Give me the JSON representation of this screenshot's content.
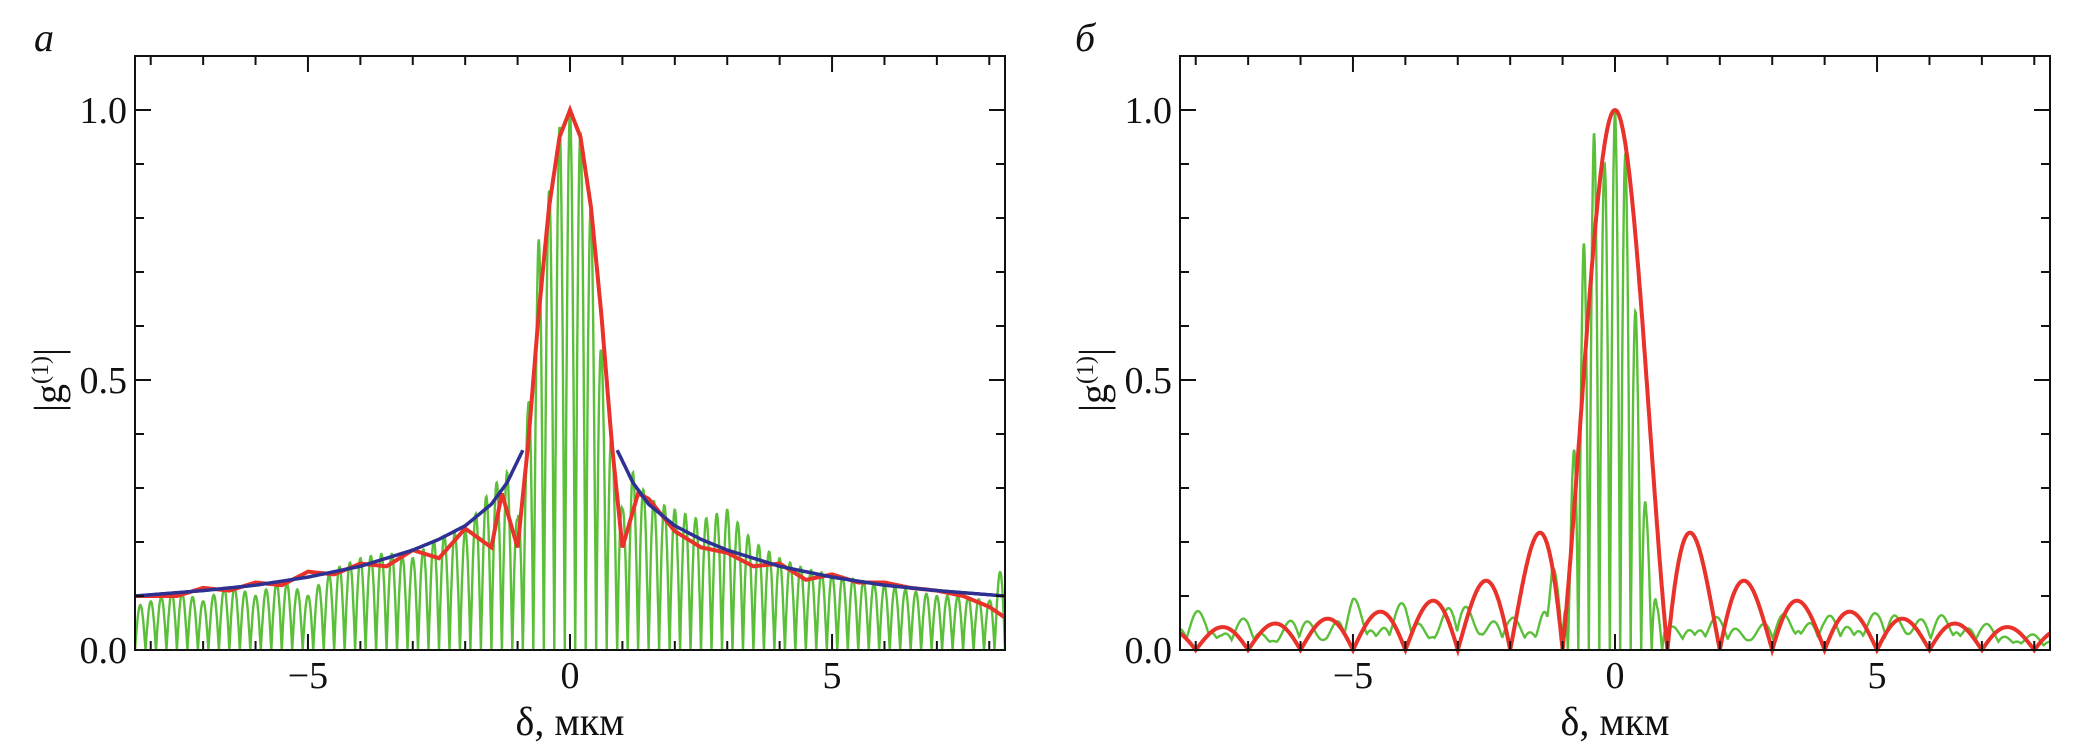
{
  "figure": {
    "panels": [
      {
        "letter": "а"
      },
      {
        "letter": "б"
      }
    ]
  },
  "colors": {
    "frame": "#111111",
    "green": "#5bbf3a",
    "red": "#e8322a",
    "blue": "#2e3192"
  },
  "chart_data": [
    {
      "type": "line",
      "panel": "а",
      "xlabel": "δ, мкм",
      "ylabel_base": "|g",
      "ylabel_sup": "(1)",
      "ylabel_end": "|",
      "xlim": [
        -8.3,
        8.3
      ],
      "ylim": [
        0,
        1.1
      ],
      "xticks": [
        {
          "value": -5,
          "label": "−5"
        },
        {
          "value": 0,
          "label": "0"
        },
        {
          "value": 5,
          "label": "5"
        }
      ],
      "yticks": [
        {
          "value": 0,
          "label": "0.0"
        },
        {
          "value": 0.5,
          "label": "0.5"
        },
        {
          "value": 1,
          "label": "1.0"
        }
      ],
      "minor_xtick_step": 1,
      "minor_ytick_step": 0.1,
      "series": [
        {
          "color_key": "green",
          "kind": "fringes",
          "x": [
            -8.3,
            -8.0,
            -7.5,
            -7.0,
            -6.5,
            -6.0,
            -5.5,
            -5.0,
            -4.5,
            -4.0,
            -3.5,
            -3.0,
            -2.5,
            -2.0,
            -1.5,
            -1.2,
            -1.0,
            -0.8,
            -0.6,
            -0.4,
            -0.2,
            0.0,
            0.2,
            0.4,
            0.6,
            0.8,
            1.0,
            1.2,
            1.5,
            2.0,
            2.5,
            3.0,
            3.5,
            4.0,
            4.5,
            5.0,
            5.5,
            6.0,
            6.5,
            7.0,
            7.5,
            8.0,
            8.3
          ],
          "y": [
            0.08,
            0.09,
            0.11,
            0.09,
            0.12,
            0.1,
            0.13,
            0.1,
            0.15,
            0.17,
            0.18,
            0.17,
            0.21,
            0.22,
            0.3,
            0.33,
            0.24,
            0.45,
            0.76,
            0.85,
            0.97,
            1.0,
            0.96,
            0.82,
            0.55,
            0.4,
            0.26,
            0.33,
            0.28,
            0.26,
            0.24,
            0.26,
            0.2,
            0.17,
            0.15,
            0.14,
            0.13,
            0.12,
            0.11,
            0.1,
            0.1,
            0.09,
            0.17
          ],
          "period": 0.2
        },
        {
          "color_key": "red",
          "kind": "smooth",
          "x": [
            -8.3,
            -7.5,
            -7.0,
            -6.5,
            -6.0,
            -5.5,
            -5.0,
            -4.5,
            -4.0,
            -3.5,
            -3.0,
            -2.5,
            -2.0,
            -1.5,
            -1.3,
            -1.0,
            -0.8,
            -0.6,
            -0.4,
            -0.2,
            0.0,
            0.2,
            0.4,
            0.6,
            0.8,
            1.0,
            1.3,
            1.5,
            2.0,
            2.5,
            3.0,
            3.5,
            4.0,
            4.5,
            5.0,
            5.5,
            6.0,
            6.5,
            7.0,
            7.5,
            8.0,
            8.3
          ],
          "y": [
            0.1,
            0.1,
            0.115,
            0.11,
            0.125,
            0.12,
            0.145,
            0.14,
            0.16,
            0.155,
            0.185,
            0.17,
            0.225,
            0.19,
            0.29,
            0.19,
            0.38,
            0.62,
            0.82,
            0.95,
            1.0,
            0.95,
            0.82,
            0.62,
            0.38,
            0.19,
            0.29,
            0.28,
            0.22,
            0.19,
            0.18,
            0.155,
            0.16,
            0.13,
            0.14,
            0.125,
            0.125,
            0.115,
            0.11,
            0.1,
            0.08,
            0.06
          ]
        },
        {
          "color_key": "blue",
          "kind": "smooth",
          "segments": [
            {
              "x": [
                -8.3,
                -7.0,
                -6.0,
                -5.0,
                -4.0,
                -3.0,
                -2.5,
                -2.0,
                -1.5,
                -1.2,
                -0.9
              ],
              "y": [
                0.1,
                0.11,
                0.12,
                0.135,
                0.155,
                0.185,
                0.205,
                0.23,
                0.27,
                0.31,
                0.37
              ]
            },
            {
              "x": [
                0.9,
                1.2,
                1.5,
                2.0,
                2.5,
                3.0,
                4.0,
                5.0,
                6.0,
                7.0,
                8.3
              ],
              "y": [
                0.37,
                0.31,
                0.27,
                0.23,
                0.205,
                0.185,
                0.155,
                0.135,
                0.12,
                0.11,
                0.1
              ]
            }
          ]
        }
      ]
    },
    {
      "type": "line",
      "panel": "б",
      "xlabel": "δ, мкм",
      "ylabel_base": "|g",
      "ylabel_sup": "(1)",
      "ylabel_end": "|",
      "xlim": [
        -8.3,
        8.3
      ],
      "ylim": [
        0,
        1.1
      ],
      "xticks": [
        {
          "value": -5,
          "label": "−5"
        },
        {
          "value": 0,
          "label": "0"
        },
        {
          "value": 5,
          "label": "5"
        }
      ],
      "yticks": [
        {
          "value": 0,
          "label": "0.0"
        },
        {
          "value": 0.5,
          "label": "0.5"
        },
        {
          "value": 1,
          "label": "1.0"
        }
      ],
      "minor_xtick_step": 1,
      "minor_ytick_step": 0.1,
      "series": [
        {
          "color_key": "green",
          "kind": "noise",
          "x": [
            -8.3,
            -7.8,
            -7.5,
            -7.0,
            -6.5,
            -6.0,
            -5.5,
            -5.0,
            -4.5,
            -4.0,
            -3.5,
            -3.0,
            -2.5,
            -2.0,
            -1.5,
            -1.2,
            -1.0,
            -0.8,
            -0.6,
            -0.4,
            -0.2,
            0.0,
            0.2,
            0.4,
            0.6,
            0.8,
            1.0,
            1.2,
            1.5,
            2.0,
            2.5,
            3.0,
            3.5,
            4.0,
            4.5,
            5.0,
            5.5,
            6.0,
            6.5,
            7.0,
            7.5,
            8.0,
            8.3
          ],
          "y": [
            0.05,
            0.09,
            0.05,
            0.06,
            0.04,
            0.07,
            0.05,
            0.1,
            0.07,
            0.09,
            0.06,
            0.1,
            0.08,
            0.06,
            0.07,
            0.22,
            0.02,
            0.35,
            0.75,
            0.96,
            0.9,
            1.0,
            0.92,
            0.62,
            0.25,
            0.08,
            0.04,
            0.05,
            0.08,
            0.06,
            0.05,
            0.06,
            0.09,
            0.06,
            0.08,
            0.07,
            0.09,
            0.06,
            0.08,
            0.05,
            0.04,
            0.03,
            0.02
          ],
          "period": 0.2
        },
        {
          "color_key": "red",
          "kind": "sinc",
          "x0": 0.0,
          "zero_spacing": 1.0,
          "peak": 1.0
        }
      ]
    }
  ]
}
